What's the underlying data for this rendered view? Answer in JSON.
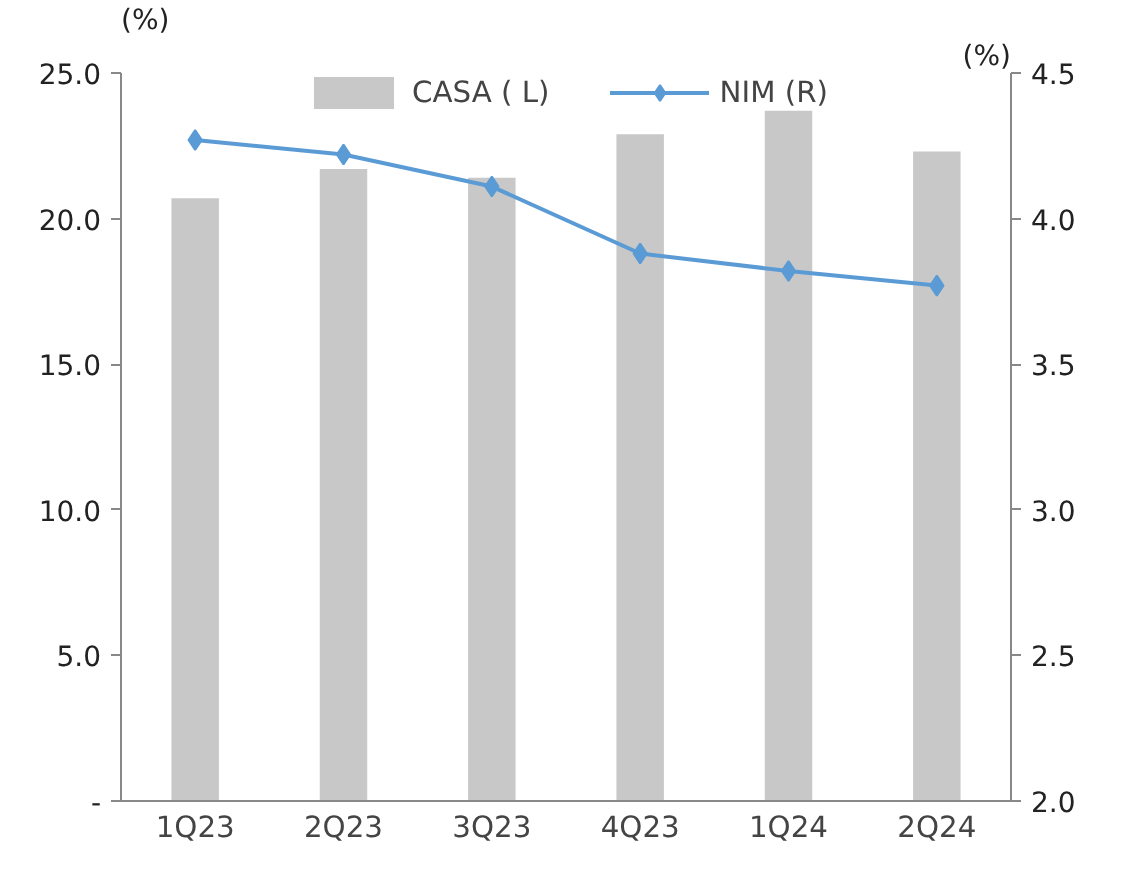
{
  "chart_data": {
    "type": "bar",
    "categories": [
      "1Q23",
      "2Q23",
      "3Q23",
      "4Q23",
      "1Q24",
      "2Q24"
    ],
    "series": [
      {
        "name": "CASA ( L)",
        "color": "#c8c8c8",
        "values": [
          20.7,
          21.7,
          21.4,
          22.9,
          23.7,
          22.3
        ]
      },
      {
        "name": "NIM (R)",
        "type": "line",
        "axis": "y2",
        "color": "#5b9bd5",
        "marker": "diamond",
        "values": [
          4.27,
          4.22,
          4.11,
          3.88,
          3.82,
          3.77
        ]
      }
    ],
    "ylabel": "(%)",
    "y2label": "(%)",
    "ylim": [
      0,
      25
    ],
    "yticks": [
      {
        "value": 0,
        "label": "-"
      },
      {
        "value": 5,
        "label": "5.0"
      },
      {
        "value": 10,
        "label": "10.0"
      },
      {
        "value": 15,
        "label": "15.0"
      },
      {
        "value": 20,
        "label": "20.0"
      },
      {
        "value": 25,
        "label": "25.0"
      }
    ],
    "y2lim": [
      2.0,
      4.5
    ],
    "y2ticks": [
      {
        "value": 2.0,
        "label": "2.0"
      },
      {
        "value": 2.5,
        "label": "2.5"
      },
      {
        "value": 3.0,
        "label": "3.0"
      },
      {
        "value": 3.5,
        "label": "3.5"
      },
      {
        "value": 4.0,
        "label": "4.0"
      },
      {
        "value": 4.5,
        "label": "4.5"
      }
    ],
    "legend": "top",
    "grid": false
  }
}
